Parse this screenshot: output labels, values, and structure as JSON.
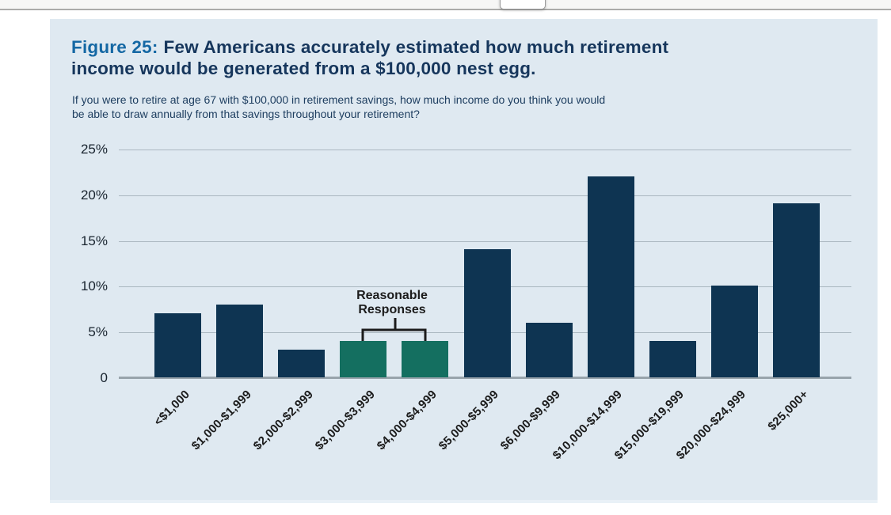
{
  "chart_data": {
    "type": "bar",
    "title_prefix": "Figure 25:",
    "title_line1": "Few Americans accurately estimated how much retirement",
    "title_line2": "income would be generated from a $100,000 nest egg.",
    "subtitle_line1": "If you were to retire at age 67 with $100,000 in retirement savings, how much income do you think you would",
    "subtitle_line2": "be able to draw annually from that savings throughout your retirement?",
    "categories": [
      "<$1,000",
      "$1,000-$1,999",
      "$2,000-$2,999",
      "$3,000-$3,999",
      "$4,000-$4,999",
      "$5,000-$5,999",
      "$6,000-$9,999",
      "$10,000-$14,999",
      "$15,000-$19,999",
      "$20,000-$24,999",
      "$25,000+"
    ],
    "values": [
      7,
      8,
      3,
      4,
      4,
      14,
      6,
      22,
      4,
      10,
      19
    ],
    "unit": "%",
    "ylim": [
      0,
      25
    ],
    "yticks": [
      {
        "label": "0",
        "value": 0
      },
      {
        "label": "5%",
        "value": 5
      },
      {
        "label": "10%",
        "value": 10
      },
      {
        "label": "15%",
        "value": 15
      },
      {
        "label": "20%",
        "value": 20
      },
      {
        "label": "25%",
        "value": 25
      }
    ],
    "grid": true,
    "legend": false,
    "highlight_indices": [
      3,
      4
    ],
    "annotation": {
      "text": "Reasonable Responses",
      "targets": [
        "$3,000-$3,999",
        "$4,000-$4,999"
      ]
    },
    "colors": {
      "bar": "#0e3452",
      "highlight_bar": "#146f60",
      "panel_background": "#dfe9f1",
      "title_prefix": "#1568a4",
      "title_text": "#16365c",
      "gridline": "#aab7c0"
    }
  }
}
